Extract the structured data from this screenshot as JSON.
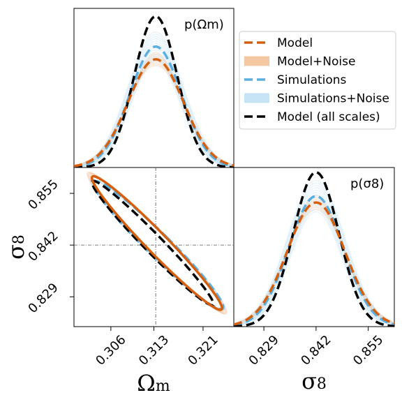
{
  "chart_data": {
    "type": "corner",
    "params": [
      {
        "key": "omega_m",
        "symbol": "Ω",
        "subscript": "m",
        "range": [
          0.3,
          0.326
        ],
        "ticks": [
          "0.306",
          "0.313",
          "0.321"
        ],
        "tick_values": [
          0.306,
          0.313,
          0.321
        ],
        "fiducial": 0.3133
      },
      {
        "key": "sigma_8",
        "symbol": "σ",
        "subscript": "8",
        "range": [
          0.8215,
          0.8615
        ],
        "ticks": [
          "0.829",
          "0.842",
          "0.855"
        ],
        "tick_values": [
          0.829,
          0.842,
          0.855
        ],
        "fiducial": 0.842
      }
    ],
    "panel_titles": {
      "omega_m": "p(Ωm)",
      "sigma_8": "p(σ8)"
    },
    "marginals": {
      "omega_m": {
        "mean": 0.3133,
        "series": [
          {
            "name": "Model",
            "sigma": 0.0045,
            "peak": 0.68
          },
          {
            "name": "Simulations",
            "sigma": 0.0042,
            "peak": 0.76
          },
          {
            "name": "Model (all scales)",
            "sigma": 0.0035,
            "peak": 0.95
          }
        ]
      },
      "sigma_8": {
        "mean": 0.842,
        "series": [
          {
            "name": "Model",
            "sigma": 0.0072,
            "peak": 0.78
          },
          {
            "name": "Simulations",
            "sigma": 0.0068,
            "peak": 0.82
          },
          {
            "name": "Model (all scales)",
            "sigma": 0.0057,
            "peak": 0.97
          }
        ]
      }
    },
    "contours": [
      {
        "name": "Model",
        "center": [
          0.3135,
          0.8425
        ],
        "sigma_x": 0.0046,
        "sigma_y": 0.0073,
        "rho": -0.975
      },
      {
        "name": "Simulations",
        "center": [
          0.3137,
          0.842
        ],
        "sigma_x": 0.0046,
        "sigma_y": 0.007,
        "rho": -0.968
      },
      {
        "name": "Model (all scales)",
        "center": [
          0.3128,
          0.8425
        ],
        "sigma_x": 0.0043,
        "sigma_y": 0.0068,
        "rho": -0.978
      }
    ],
    "legend": [
      {
        "label": "Model",
        "style": "dashed",
        "color": "#d4600f"
      },
      {
        "label": "Model+Noise",
        "style": "patch",
        "color": "#f5c8a4"
      },
      {
        "label": "Simulations",
        "style": "dashed",
        "color": "#5aaee0"
      },
      {
        "label": "Simulations+Noise",
        "style": "patch",
        "color": "#c6e3f5"
      },
      {
        "label": "Model (all scales)",
        "style": "dashed",
        "color": "#000000"
      }
    ],
    "legend_placement": "upper-right",
    "grid": false
  }
}
